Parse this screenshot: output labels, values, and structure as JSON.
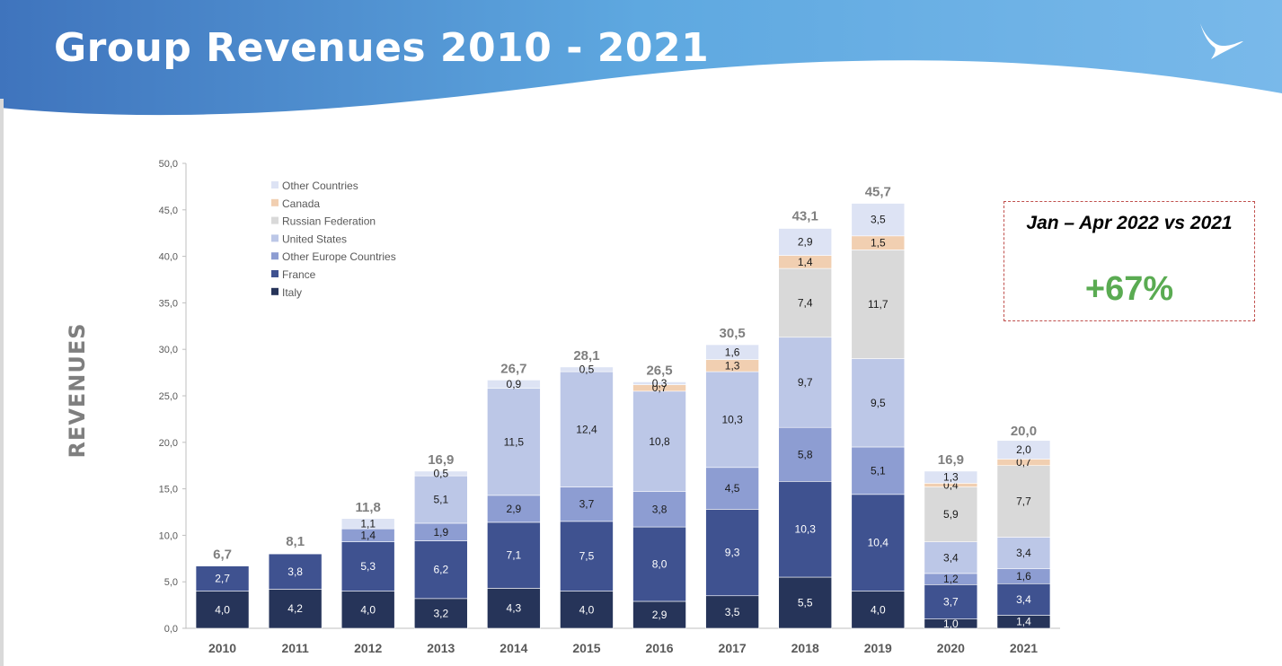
{
  "header": {
    "title": "Group Revenues 2010 - 2021",
    "gradient": [
      "#3f74bd",
      "#5ea8e0",
      "#79b9ea"
    ]
  },
  "note": {
    "title": "Jan – Apr 2022 vs 2021",
    "value": "+67%",
    "value_color": "#5aab52",
    "border_color": "#c0504d"
  },
  "chart_data": {
    "type": "bar",
    "stacked": true,
    "title": "",
    "xlabel": "",
    "ylabel": "REVENUES",
    "ylim": [
      0,
      50
    ],
    "yticks": [
      "0,0",
      "5,0",
      "10,0",
      "15,0",
      "20,0",
      "25,0",
      "30,0",
      "35,0",
      "40,0",
      "45,0",
      "50,0"
    ],
    "legend_position": "top-left",
    "categories": [
      "2010",
      "2011",
      "2012",
      "2013",
      "2014",
      "2015",
      "2016",
      "2017",
      "2018",
      "2019",
      "2020",
      "2021"
    ],
    "series": [
      {
        "name": "Italy",
        "color": "#263459",
        "label_color": "#ffffff",
        "values": [
          4.0,
          4.2,
          4.0,
          3.2,
          4.3,
          4.0,
          2.9,
          3.5,
          5.5,
          4.0,
          1.0,
          1.4
        ],
        "labels": [
          "4,0",
          "4,2",
          "4,0",
          "3,2",
          "4,3",
          "4,0",
          "2,9",
          "3,5",
          "5,5",
          "4,0",
          "1,0",
          "1,4"
        ]
      },
      {
        "name": "France",
        "color": "#3f5290",
        "label_color": "#ffffff",
        "values": [
          2.7,
          3.8,
          5.3,
          6.2,
          7.1,
          7.5,
          8.0,
          9.3,
          10.3,
          10.4,
          3.7,
          3.4
        ],
        "labels": [
          "2,7",
          "3,8",
          "5,3",
          "6,2",
          "7,1",
          "7,5",
          "8,0",
          "9,3",
          "10,3",
          "10,4",
          "3,7",
          "3,4"
        ]
      },
      {
        "name": "Other Europe Countries",
        "color": "#8d9dd2",
        "label_color": "#1a1a1a",
        "values": [
          0,
          0,
          1.4,
          1.9,
          2.9,
          3.7,
          3.8,
          4.5,
          5.8,
          5.1,
          1.2,
          1.6
        ],
        "labels": [
          "",
          "",
          "1,4",
          "1,9",
          "2,9",
          "3,7",
          "3,8",
          "4,5",
          "5,8",
          "5,1",
          "1,2",
          "1,6"
        ]
      },
      {
        "name": "United States",
        "color": "#bcc7e7",
        "label_color": "#1a1a1a",
        "values": [
          0,
          0,
          0,
          5.1,
          11.5,
          12.4,
          10.8,
          10.3,
          9.7,
          9.5,
          3.4,
          3.4
        ],
        "labels": [
          "",
          "",
          "",
          "5,1",
          "11,5",
          "12,4",
          "10,8",
          "10,3",
          "9,7",
          "9,5",
          "3,4",
          "3,4"
        ]
      },
      {
        "name": "Russian Federation",
        "color": "#d9d9d9",
        "label_color": "#1a1a1a",
        "values": [
          0,
          0,
          0,
          0,
          0,
          0,
          0,
          0,
          7.4,
          11.7,
          5.9,
          7.7
        ],
        "labels": [
          "",
          "",
          "",
          "",
          "",
          "",
          "",
          "",
          "7,4",
          "11,7",
          "5,9",
          "7,7"
        ]
      },
      {
        "name": "Canada",
        "color": "#f1cfb1",
        "label_color": "#1a1a1a",
        "values": [
          0,
          0,
          0,
          0,
          0,
          0,
          0.7,
          1.3,
          1.4,
          1.5,
          0.4,
          0.7
        ],
        "labels": [
          "",
          "",
          "",
          "",
          "",
          "",
          "0,7",
          "1,3",
          "1,4",
          "1,5",
          "0,4",
          "0,7"
        ]
      },
      {
        "name": "Other Countries",
        "color": "#dde3f4",
        "label_color": "#1a1a1a",
        "values": [
          0,
          0,
          1.1,
          0.5,
          0.9,
          0.5,
          0.3,
          1.6,
          2.9,
          3.5,
          1.3,
          2.0
        ],
        "labels": [
          "",
          "",
          "1,1",
          "0,5",
          "0,9",
          "0,5",
          "0,3",
          "1,6",
          "2,9",
          "3,5",
          "1,3",
          "2,0"
        ]
      }
    ],
    "totals": [
      6.7,
      8.1,
      11.8,
      16.9,
      26.7,
      28.1,
      26.5,
      30.5,
      43.1,
      45.7,
      16.9,
      20.0
    ],
    "total_labels": [
      "6,7",
      "8,1",
      "11,8",
      "16,9",
      "26,7",
      "28,1",
      "26,5",
      "30,5",
      "43,1",
      "45,7",
      "16,9",
      "20,0"
    ]
  }
}
